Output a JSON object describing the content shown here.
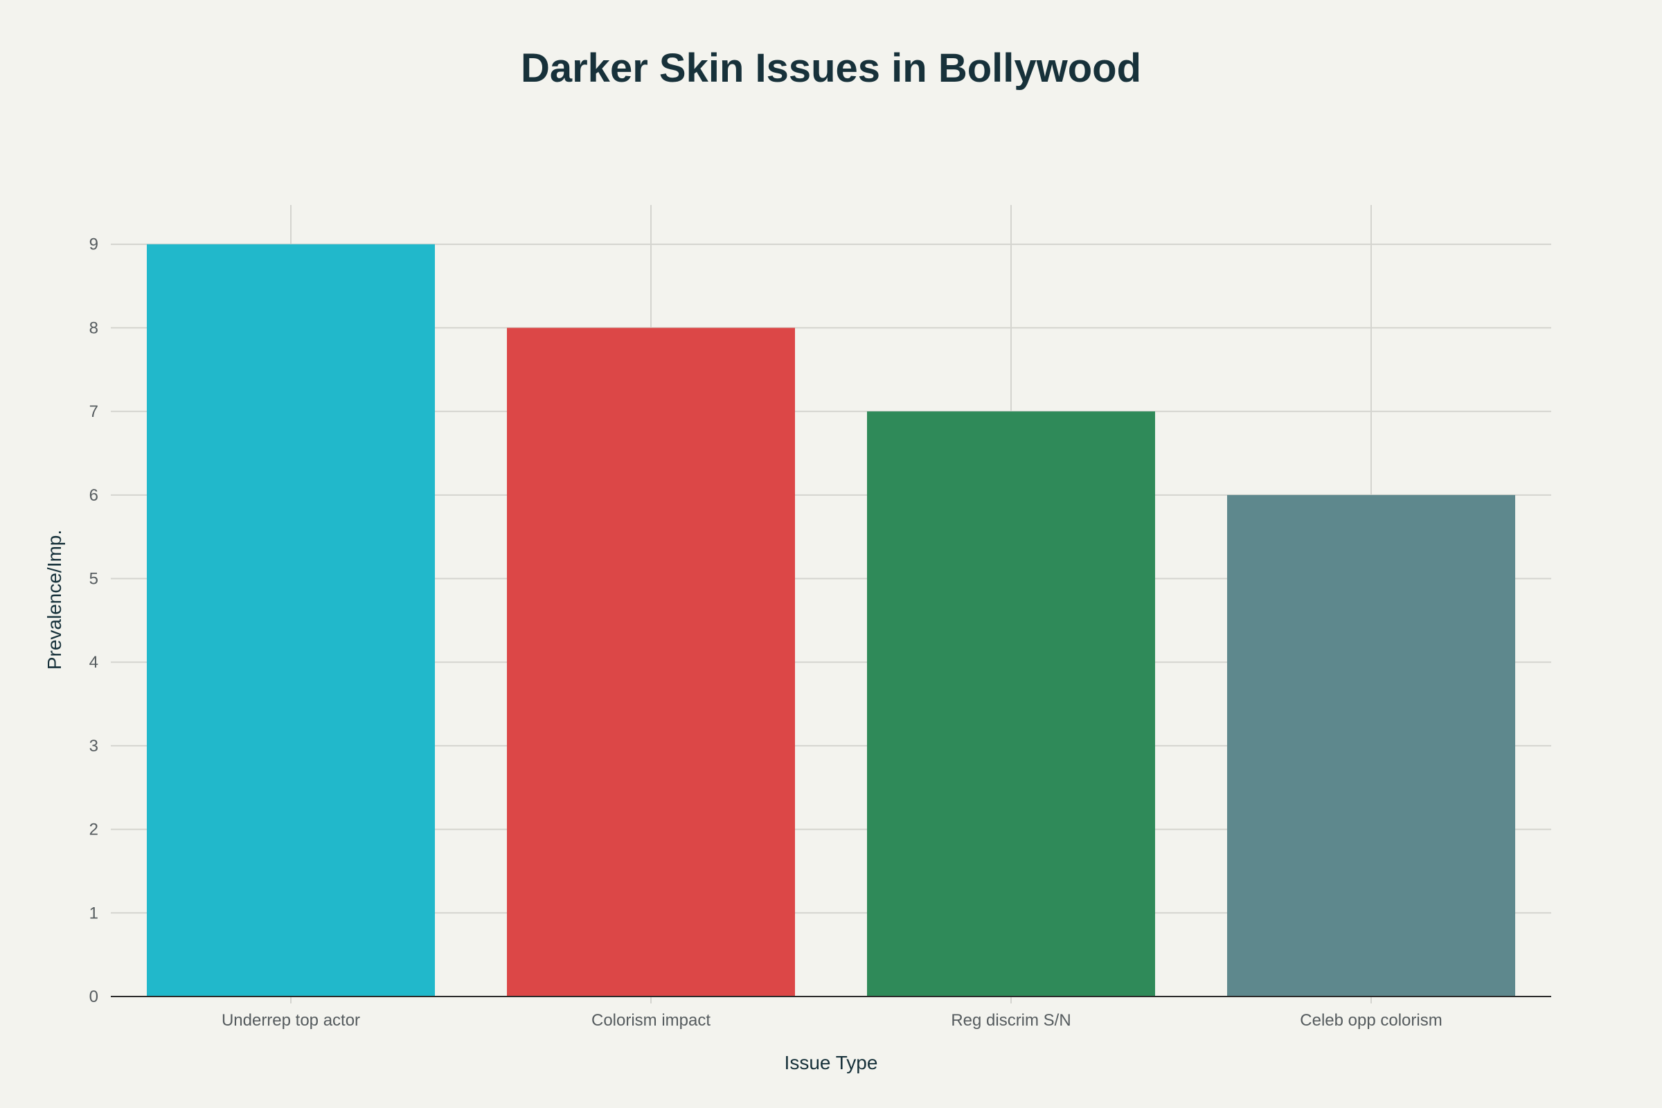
{
  "chart_data": {
    "type": "bar",
    "title": "Darker Skin Issues in Bollywood",
    "xlabel": "Issue Type",
    "ylabel": "Prevalence/Imp.",
    "categories": [
      "Underrep top actor",
      "Colorism impact",
      "Reg discrim S/N",
      "Celeb opp colorism"
    ],
    "values": [
      9,
      8,
      7,
      6
    ],
    "colors": [
      "#21b8cb",
      "#dc4747",
      "#2f8a59",
      "#5e888d"
    ],
    "ylim": [
      0,
      9.47
    ],
    "yticks": [
      0,
      1,
      2,
      3,
      4,
      5,
      6,
      7,
      8,
      9
    ],
    "grid": true,
    "legend": "none"
  }
}
